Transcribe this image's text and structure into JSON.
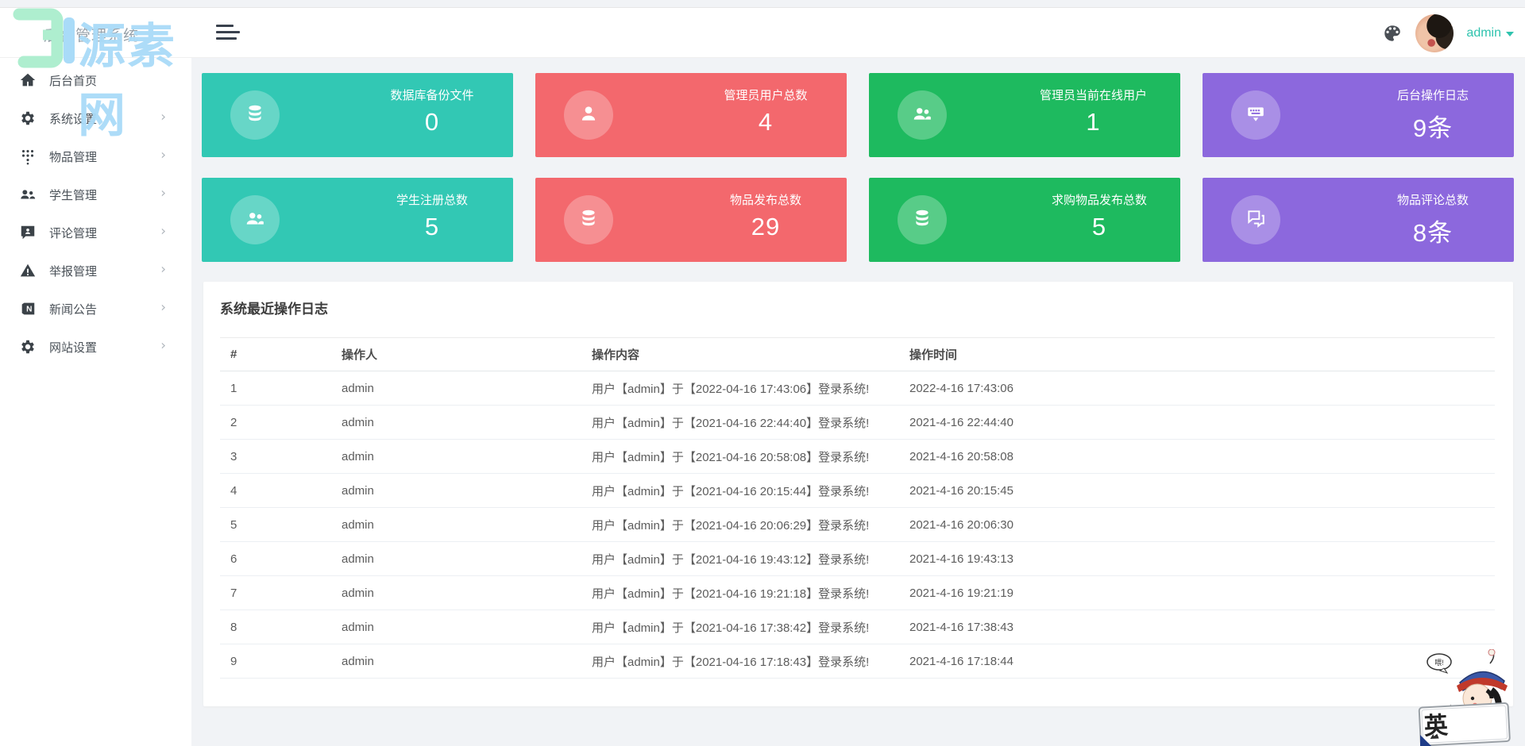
{
  "watermark": {
    "brand": "源素网"
  },
  "topbar": {
    "title": "后台管理系统",
    "user": {
      "name": "admin"
    }
  },
  "sidebar": {
    "items": [
      {
        "label": "后台首页",
        "icon": "home-icon",
        "has_children": false
      },
      {
        "label": "系统设置",
        "icon": "gear-icon",
        "has_children": true
      },
      {
        "label": "物品管理",
        "icon": "grid-icon",
        "has_children": true
      },
      {
        "label": "学生管理",
        "icon": "users-icon",
        "has_children": true
      },
      {
        "label": "评论管理",
        "icon": "comment-icon",
        "has_children": true
      },
      {
        "label": "举报管理",
        "icon": "warning-icon",
        "has_children": true
      },
      {
        "label": "新闻公告",
        "icon": "news-icon",
        "has_children": true
      },
      {
        "label": "网站设置",
        "icon": "gear-icon",
        "has_children": true
      }
    ]
  },
  "stats": {
    "cards": [
      {
        "label": "数据库备份文件",
        "value": "0",
        "color": "#32c8b4",
        "icon": "database-icon"
      },
      {
        "label": "管理员用户总数",
        "value": "4",
        "color": "#f3686d",
        "icon": "user-icon"
      },
      {
        "label": "管理员当前在线用户",
        "value": "1",
        "color": "#1eba5f",
        "icon": "users-icon"
      },
      {
        "label": "后台操作日志",
        "value": "9条",
        "color": "#8c68dd",
        "icon": "keyboard-icon"
      },
      {
        "label": "学生注册总数",
        "value": "5",
        "color": "#32c8b4",
        "icon": "users-icon"
      },
      {
        "label": "物品发布总数",
        "value": "29",
        "color": "#f3686d",
        "icon": "database-icon"
      },
      {
        "label": "求购物品发布总数",
        "value": "5",
        "color": "#1eba5f",
        "icon": "database-icon"
      },
      {
        "label": "物品评论总数",
        "value": "8条",
        "color": "#8c68dd",
        "icon": "comments-icon"
      }
    ]
  },
  "panel": {
    "title": "系统最近操作日志",
    "table": {
      "headers": [
        "#",
        "操作人",
        "操作内容",
        "操作时间"
      ],
      "rows": [
        [
          "1",
          "admin",
          "用户【admin】于【2022-04-16 17:43:06】登录系统!",
          "2022-4-16 17:43:06"
        ],
        [
          "2",
          "admin",
          "用户【admin】于【2021-04-16 22:44:40】登录系统!",
          "2021-4-16 22:44:40"
        ],
        [
          "3",
          "admin",
          "用户【admin】于【2021-04-16 20:58:08】登录系统!",
          "2021-4-16 20:58:08"
        ],
        [
          "4",
          "admin",
          "用户【admin】于【2021-04-16 20:15:44】登录系统!",
          "2021-4-16 20:15:45"
        ],
        [
          "5",
          "admin",
          "用户【admin】于【2021-04-16 20:06:29】登录系统!",
          "2021-4-16 20:06:30"
        ],
        [
          "6",
          "admin",
          "用户【admin】于【2021-04-16 19:43:12】登录系统!",
          "2021-4-16 19:43:13"
        ],
        [
          "7",
          "admin",
          "用户【admin】于【2021-04-16 19:21:18】登录系统!",
          "2021-4-16 19:21:19"
        ],
        [
          "8",
          "admin",
          "用户【admin】于【2021-04-16 17:38:42】登录系统!",
          "2021-4-16 17:38:43"
        ],
        [
          "9",
          "admin",
          "用户【admin】于【2021-04-16 17:18:43】登录系统!",
          "2021-4-16 17:18:44"
        ]
      ]
    }
  },
  "mascot": {
    "bubble": "喂!",
    "badge": "英"
  }
}
